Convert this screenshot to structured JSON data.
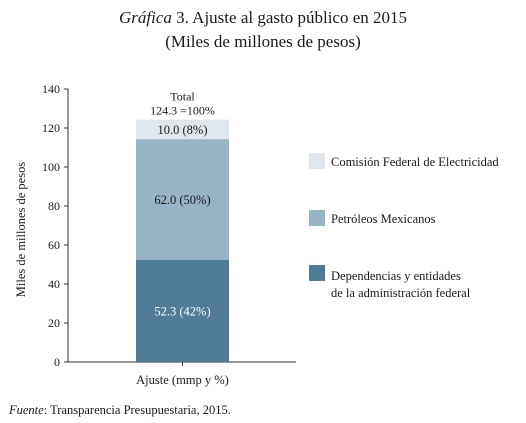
{
  "title": {
    "prefix": "Gráfica",
    "main": " 3. Ajuste al gasto público en 2015",
    "subtitle": "(Miles de millones de pesos)"
  },
  "source": {
    "label": "Fuente",
    "text": ": Transparencia Presupuestaria, 2015."
  },
  "chart_data": {
    "type": "bar",
    "stacked": true,
    "categories": [
      "Ajuste (mmp y %)"
    ],
    "ylabel": "Miles de millones de pesos",
    "xlabel": "",
    "ylim": [
      0,
      140
    ],
    "yticks": [
      0,
      20,
      40,
      60,
      80,
      100,
      120,
      140
    ],
    "grid": false,
    "legend_position": "right",
    "total": {
      "line1": "Total",
      "line2": "124.3 =100%",
      "value": 124.3
    },
    "series": [
      {
        "name": "Dependencias y entidades de la administración federal",
        "legend_lines": [
          "Dependencias y entidades",
          "de la administración federal"
        ],
        "values": [
          52.3
        ],
        "label": "52.3 (42%)",
        "color": "#4f7b96",
        "label_color": "#ffffff"
      },
      {
        "name": "Petróleos Mexicanos",
        "legend_lines": [
          "Petróleos Mexicanos"
        ],
        "values": [
          62.0
        ],
        "label": "62.0 (50%)",
        "color": "#97b3c4",
        "label_color": "#1a1a1a"
      },
      {
        "name": "Comisión Federal de Electricidad",
        "legend_lines": [
          "Comisión Federal de Electricidad"
        ],
        "values": [
          10.0
        ],
        "label": "10.0 (8%)",
        "color": "#dfe7ed",
        "label_color": "#1a1a1a"
      }
    ]
  }
}
